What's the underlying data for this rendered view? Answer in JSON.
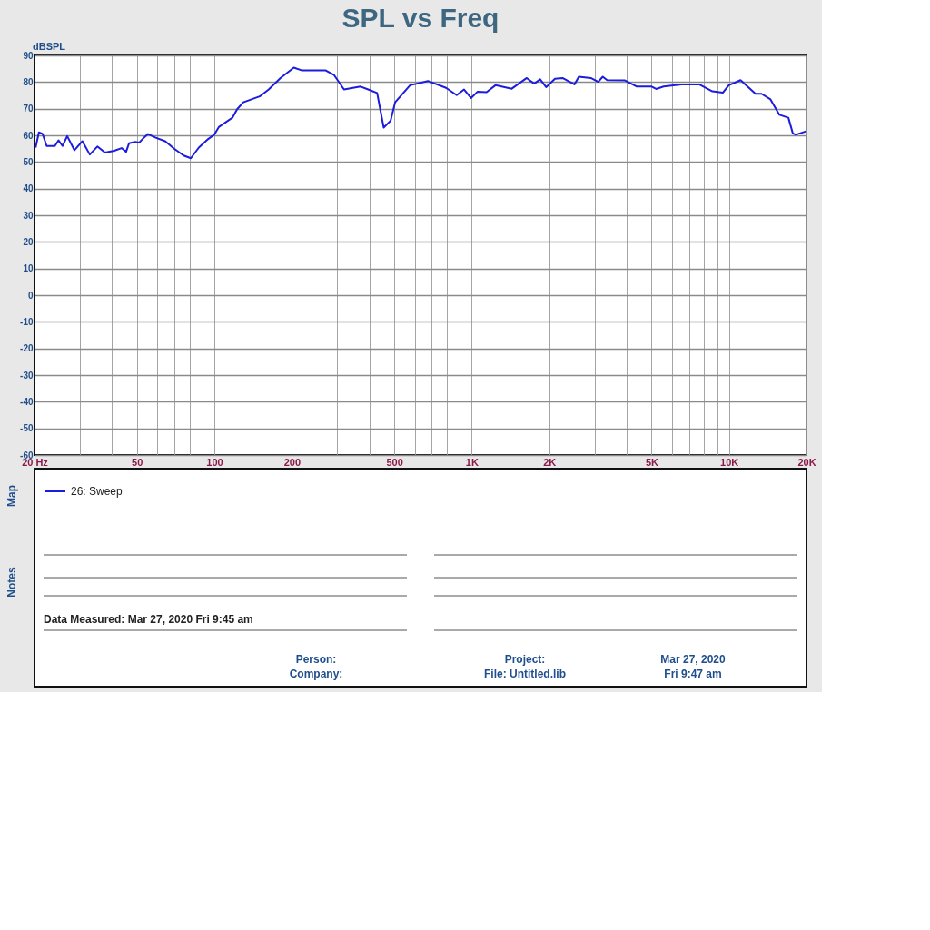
{
  "chart_data": {
    "type": "line",
    "title": "SPL vs Freq",
    "ylabel": "dBSPL",
    "log": "x",
    "grid": true,
    "legend": "bottom",
    "marker": "none",
    "line_style": "solid",
    "xlim": [
      20,
      20000
    ],
    "ylim": [
      -60,
      90
    ],
    "xticks": [
      {
        "value": 20,
        "label": "20 Hz"
      },
      {
        "value": 30,
        "label": null
      },
      {
        "value": 40,
        "label": null
      },
      50,
      {
        "value": 60,
        "label": null
      },
      {
        "value": 70,
        "label": null
      },
      {
        "value": 80,
        "label": null
      },
      {
        "value": 90,
        "label": null
      },
      100,
      200,
      {
        "value": 300,
        "label": null
      },
      {
        "value": 400,
        "label": null
      },
      500,
      {
        "value": 600,
        "label": null
      },
      {
        "value": 700,
        "label": null
      },
      {
        "value": 800,
        "label": null
      },
      {
        "value": 900,
        "label": null
      },
      {
        "value": 1000,
        "label": "1K"
      },
      {
        "value": 2000,
        "label": "2K"
      },
      {
        "value": 3000,
        "label": null
      },
      {
        "value": 4000,
        "label": null
      },
      {
        "value": 5000,
        "label": "5K"
      },
      {
        "value": 6000,
        "label": null
      },
      {
        "value": 7000,
        "label": null
      },
      {
        "value": 8000,
        "label": null
      },
      {
        "value": 9000,
        "label": null
      },
      {
        "value": 10000,
        "label": "10K"
      },
      {
        "value": 20000,
        "label": "20K"
      }
    ],
    "yticks": [
      -60,
      -50,
      -40,
      -30,
      -20,
      -10,
      0,
      10,
      20,
      30,
      40,
      50,
      60,
      70,
      80,
      90
    ],
    "series": [
      {
        "name": "26: Sweep",
        "color": "#1c1cdc",
        "x": [
          20.2,
          20.8,
          21.5,
          22.3,
          24.0,
          24.8,
          25.7,
          26.8,
          28.6,
          30.7,
          32.8,
          35.1,
          37.6,
          40.8,
          43.6,
          45.4,
          46.6,
          49.1,
          51.1,
          52.6,
          55.2,
          59.2,
          64.4,
          70,
          76,
          81,
          87,
          94.6,
          99.8,
          104,
          117.5,
          122.6,
          129.6,
          150,
          162.6,
          180.6,
          203.5,
          218,
          270,
          292,
          319,
          370,
          396,
          429,
          455,
          484,
          504,
          576,
          676,
          795,
          874,
          934,
          994,
          1054,
          1142,
          1237,
          1431,
          1636,
          1749,
          1845,
          1946,
          2106,
          2254,
          2507,
          2608,
          2903,
          3103,
          3230,
          3360,
          3943,
          4385,
          5006,
          5209,
          5570,
          6532,
          7656,
          8615,
          9460,
          9978,
          11087,
          12670,
          13370,
          14490,
          15700,
          17010,
          17700,
          18170,
          19900
        ],
        "values": [
          55.4,
          61.1,
          60.5,
          56,
          56,
          58.1,
          56,
          59.7,
          54.4,
          57.8,
          52.8,
          55.8,
          53.5,
          54.2,
          55.2,
          53.8,
          57,
          57.5,
          57.3,
          58.6,
          60.5,
          59.1,
          57.8,
          54.9,
          52.4,
          51.4,
          55.4,
          58.6,
          60.2,
          63.1,
          66.6,
          69.8,
          72.4,
          74.6,
          77.2,
          81.5,
          85.4,
          84.4,
          84.4,
          82.6,
          77.2,
          78.3,
          77.2,
          75.9,
          62.9,
          65.5,
          72.4,
          78.8,
          80.4,
          77.8,
          75.1,
          77.2,
          74,
          76.4,
          76.2,
          78.8,
          77.5,
          81.5,
          79.4,
          81,
          78.1,
          81.2,
          81.5,
          79.1,
          82,
          81.5,
          80.1,
          82,
          80.7,
          80.6,
          78.3,
          78.3,
          77.4,
          78.3,
          79.1,
          79.1,
          76.5,
          76,
          78.8,
          80.7,
          75.6,
          75.6,
          73.5,
          67.7,
          66.6,
          60.7,
          60.2,
          61.5
        ]
      }
    ],
    "annotations": [
      "Map",
      "Notes",
      "Data Measured: Mar 27, 2020  Fri  9:45 am",
      "Person:",
      "Company:",
      "Project:",
      "File: Untitled.lib",
      "Mar 27, 2020",
      "Fri  9:47 am"
    ]
  }
}
